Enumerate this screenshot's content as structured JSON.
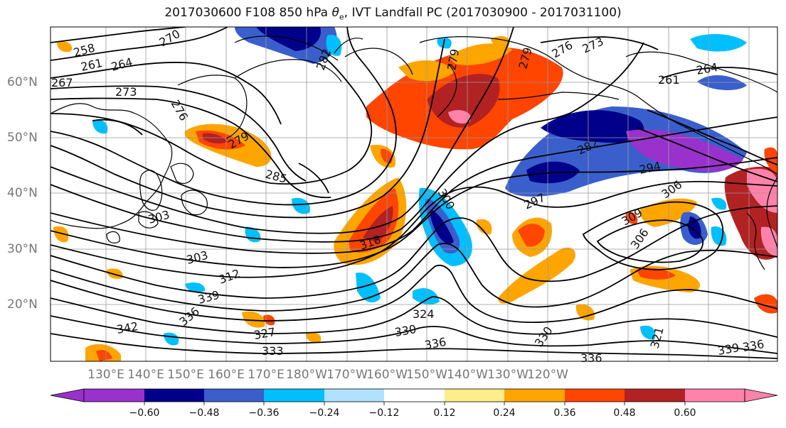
{
  "title_main": "2017030600 F108 850 hPa ",
  "title_sym": "θ",
  "title_sub": "e",
  "title_rest": ", IVT Landfall PC (2017030900 - 2017031100)",
  "lat_labels": [
    "60°N",
    "50°N",
    "40°N",
    "30°N",
    "20°N"
  ],
  "lon_labels": [
    "130°E",
    "140°E",
    "150°E",
    "160°E",
    "170°E",
    "180°W",
    "170°W",
    "160°W",
    "150°W",
    "140°W",
    "130°W",
    "120°W"
  ],
  "contour_labels": [
    "258",
    "261",
    "264",
    "267",
    "270",
    "273",
    "276",
    "279",
    "282",
    "276",
    "273",
    "261",
    "264",
    "279",
    "279",
    "285",
    "282",
    "294",
    "300",
    "297",
    "306",
    "303",
    "309",
    "306",
    "303",
    "312",
    "318",
    "321",
    "324",
    "327",
    "330",
    "333",
    "336",
    "339",
    "342",
    "336",
    "330",
    "336",
    "339",
    "336"
  ],
  "colorbar": {
    "colors": [
      "#9932CC",
      "#00008B",
      "#3A5FCD",
      "#00BFFF",
      "#B0E2FF",
      "#FFFFFF",
      "#FFEC8B",
      "#FFA500",
      "#FF4500",
      "#B22222",
      "#FF82AB"
    ],
    "tick_labels": [
      "−0.60",
      "−0.48",
      "−0.36",
      "−0.24",
      "−0.12",
      "0.12",
      "0.24",
      "0.36",
      "0.48",
      "0.60"
    ]
  },
  "map_data": {
    "projection": "cylindrical",
    "lon_range": [
      "120°E",
      "125°W"
    ],
    "lat_range": [
      "10°N",
      "70°N"
    ],
    "grid": true,
    "variable_contours": "850 hPa theta-e (K)",
    "variable_shading": "IVT landfall PC"
  }
}
